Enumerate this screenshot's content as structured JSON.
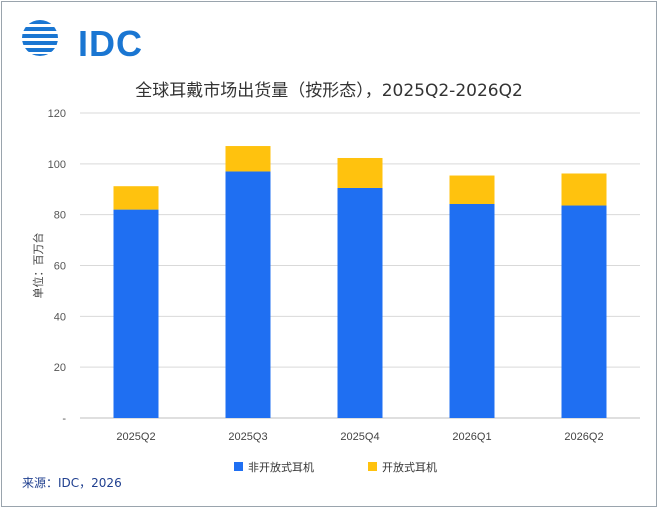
{
  "brand": {
    "logo_text": "IDC",
    "color": "#1a76d2"
  },
  "title": "全球耳戴市场出货量（按形态），2025Q2-2026Q2",
  "source": "来源：IDC，2026",
  "chart_data": {
    "type": "bar",
    "stacked": true,
    "categories": [
      "2025Q2",
      "2025Q3",
      "2025Q4",
      "2026Q1",
      "2026Q2"
    ],
    "series": [
      {
        "name": "非开放式耳机",
        "color": "#1f6ff2",
        "values": [
          82.0,
          97.0,
          90.5,
          84.2,
          83.6
        ]
      },
      {
        "name": "开放式耳机",
        "color": "#ffc20e",
        "values": [
          9.2,
          10.0,
          11.8,
          11.2,
          12.6
        ]
      }
    ],
    "ylabel": "单位：百万台",
    "ylim": [
      0,
      120
    ],
    "yticks": [
      {
        "value": 0,
        "label": "-"
      },
      {
        "value": 20,
        "label": "20"
      },
      {
        "value": 40,
        "label": "40"
      },
      {
        "value": 60,
        "label": "60"
      },
      {
        "value": 80,
        "label": "80"
      },
      {
        "value": 100,
        "label": "100"
      },
      {
        "value": 120,
        "label": "120"
      }
    ],
    "grid": true,
    "legend": "bottom"
  }
}
